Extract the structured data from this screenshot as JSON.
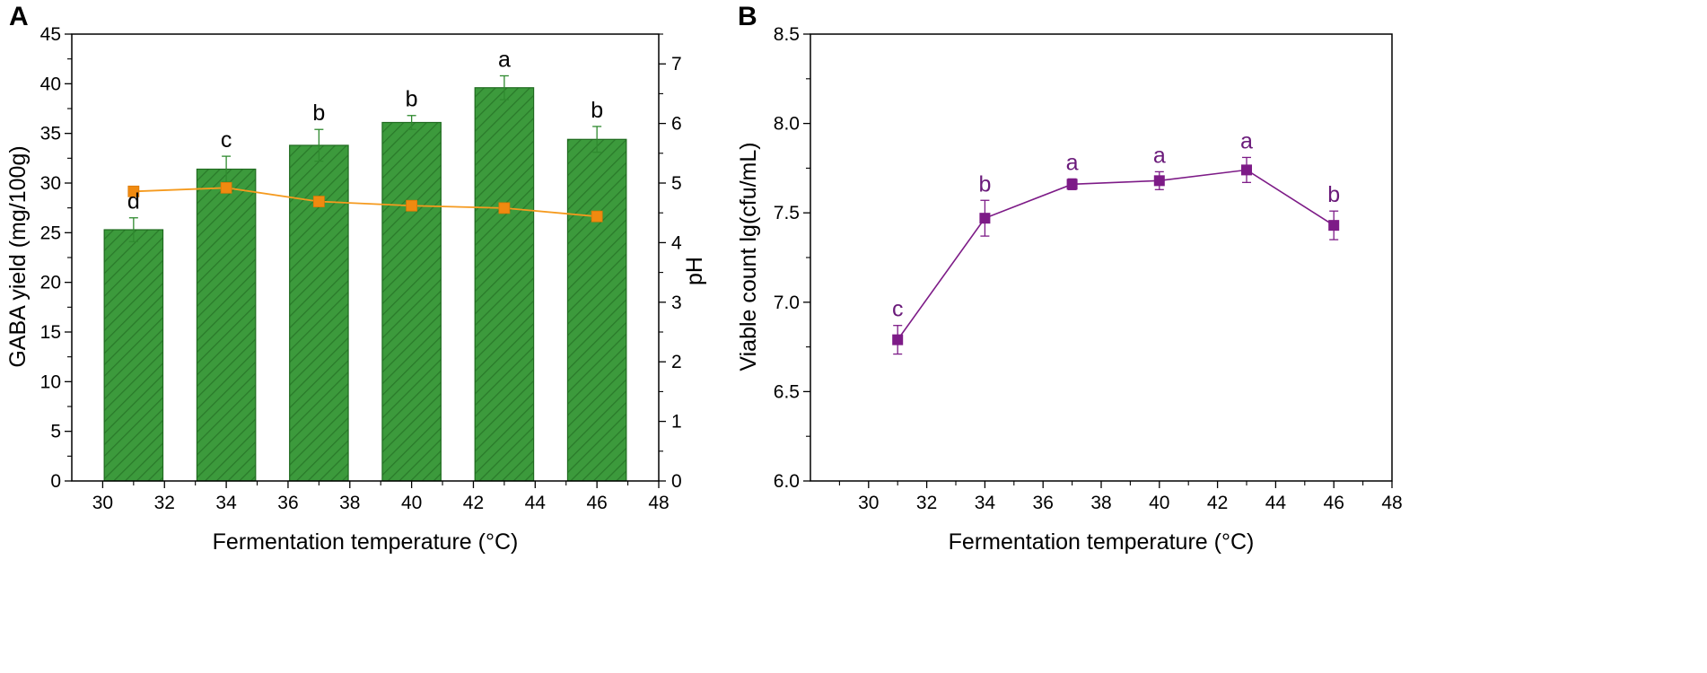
{
  "colors": {
    "bar_fill": "#3c9a3c",
    "bar_stroke": "#1f6b1f",
    "hatch": "#2a7a2a",
    "ph_line": "#f59a1e",
    "ph_marker": "#f08a10",
    "viable": "#7d1b87",
    "sig_a": "#000000",
    "sig_b": "#6a1a7a",
    "errorbar_a": "#2f8a2f"
  },
  "chart_data": [
    {
      "panel_label": "A",
      "type": "bar",
      "title": "",
      "xlabel": "Fermentation temperature (°C)",
      "ylabel": "GABA yield (mg/100g)",
      "y2label": "pH",
      "xlim": [
        29,
        48
      ],
      "xticks": [
        30,
        32,
        34,
        36,
        38,
        40,
        42,
        44,
        46,
        48
      ],
      "xtick_labels": [
        "30",
        "32",
        "34",
        "36",
        "38",
        "40",
        "42",
        "44",
        "46",
        "48"
      ],
      "ylim": [
        0,
        45
      ],
      "yticks": [
        0,
        5,
        10,
        15,
        20,
        25,
        30,
        35,
        40,
        45
      ],
      "ytick_labels": [
        "0",
        "5",
        "10",
        "15",
        "20",
        "25",
        "30",
        "35",
        "40",
        "45"
      ],
      "y2lim": [
        0,
        7.5
      ],
      "y2ticks": [
        0,
        1,
        2,
        3,
        4,
        5,
        6,
        7
      ],
      "y2tick_labels": [
        "0",
        "1",
        "2",
        "3",
        "4",
        "5",
        "6",
        "7"
      ],
      "bar_width": 1.9,
      "series": [
        {
          "name": "GABA yield",
          "kind": "bar",
          "axis": "left",
          "x": [
            31,
            34,
            37,
            40,
            43,
            46
          ],
          "values": [
            25.3,
            31.4,
            33.8,
            36.1,
            39.6,
            34.4
          ],
          "errors": [
            1.2,
            1.3,
            1.6,
            0.7,
            1.2,
            1.3
          ],
          "significance": [
            "d",
            "c",
            "b",
            "b",
            "a",
            "b"
          ]
        },
        {
          "name": "pH",
          "kind": "line",
          "axis": "right",
          "x": [
            31,
            34,
            37,
            40,
            43,
            46
          ],
          "values": [
            4.86,
            4.92,
            4.69,
            4.62,
            4.58,
            4.44
          ]
        }
      ]
    },
    {
      "panel_label": "B",
      "type": "line",
      "title": "",
      "xlabel": "Fermentation temperature (°C)",
      "ylabel": "Viable count lg(cfu/mL)",
      "xlim": [
        28,
        48
      ],
      "xticks": [
        30,
        32,
        34,
        36,
        38,
        40,
        42,
        44,
        46,
        48
      ],
      "xtick_labels": [
        "30",
        "32",
        "34",
        "36",
        "38",
        "40",
        "42",
        "44",
        "46",
        "48"
      ],
      "ylim": [
        6.0,
        8.5
      ],
      "yticks": [
        6.0,
        6.5,
        7.0,
        7.5,
        8.0,
        8.5
      ],
      "ytick_labels": [
        "6.0",
        "6.5",
        "7.0",
        "7.5",
        "8.0",
        "8.5"
      ],
      "series": [
        {
          "name": "Viable count",
          "x": [
            31,
            34,
            37,
            40,
            43,
            46
          ],
          "values": [
            6.79,
            7.47,
            7.66,
            7.68,
            7.74,
            7.43
          ],
          "errors": [
            0.08,
            0.1,
            0.03,
            0.05,
            0.07,
            0.08
          ],
          "significance": [
            "c",
            "b",
            "a",
            "a",
            "a",
            "b"
          ]
        }
      ]
    }
  ]
}
